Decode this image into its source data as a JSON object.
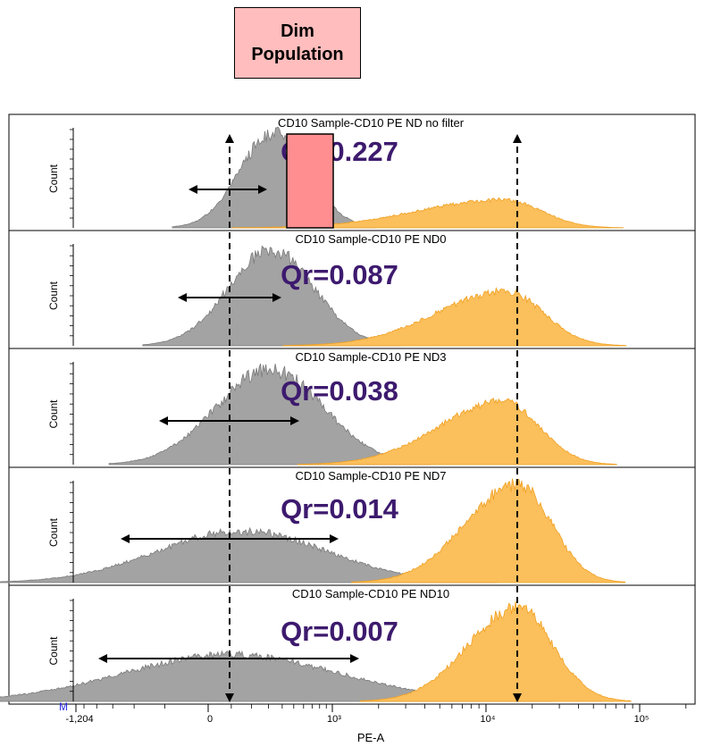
{
  "dim_label": [
    "Dim",
    "Population"
  ],
  "chart_data": {
    "type": "area",
    "xlabel": "PE-A",
    "ylabel": "Count",
    "x_scale": "biexponential",
    "x_tick_labels": [
      "-1,204",
      "0",
      "10³",
      "10⁴",
      "10⁵"
    ],
    "x_ticks": [
      -1204,
      0,
      1000,
      10000,
      100000
    ],
    "corner_label": "M",
    "colors": {
      "dim": "#a3a3a3",
      "bright": "#fbbf5c",
      "dim_box": "#ff8e90",
      "label": "#3d1a6e"
    },
    "panels": [
      {
        "title": "CD10 Sample-CD10 PE ND no filter",
        "qr_label": "Qr=0.227",
        "ylim": [
          0,
          700
        ],
        "series": [
          {
            "population": "dim",
            "peak_x": 340,
            "peak_count": 680
          },
          {
            "population": "bright",
            "peak_x": 13000,
            "peak_count": 200
          }
        ]
      },
      {
        "title": "CD10 Sample-CD10 PE ND0",
        "qr_label": "Qr=0.087",
        "ylim": [
          0,
          450
        ],
        "series": [
          {
            "population": "dim",
            "peak_x": 320,
            "peak_count": 430
          },
          {
            "population": "bright",
            "peak_x": 13500,
            "peak_count": 245
          }
        ]
      },
      {
        "title": "CD10 Sample-CD10 PE ND3",
        "qr_label": "Qr=0.038",
        "ylim": [
          0,
          350
        ],
        "series": [
          {
            "population": "dim",
            "peak_x": 310,
            "peak_count": 330
          },
          {
            "population": "bright",
            "peak_x": 13000,
            "peak_count": 220
          }
        ]
      },
      {
        "title": "CD10 Sample-CD10 PE ND7",
        "qr_label": "Qr=0.014",
        "ylim": [
          0,
          300
        ],
        "series": [
          {
            "population": "dim",
            "peak_x": 150,
            "peak_count": 155
          },
          {
            "population": "bright",
            "peak_x": 16000,
            "peak_count": 295
          }
        ]
      },
      {
        "title": "CD10 Sample-CD10 PE ND10",
        "qr_label": "Qr=0.007",
        "ylim": [
          0,
          280
        ],
        "series": [
          {
            "population": "dim",
            "peak_x": 100,
            "peak_count": 130
          },
          {
            "population": "bright",
            "peak_x": 16000,
            "peak_count": 260
          }
        ]
      }
    ]
  }
}
